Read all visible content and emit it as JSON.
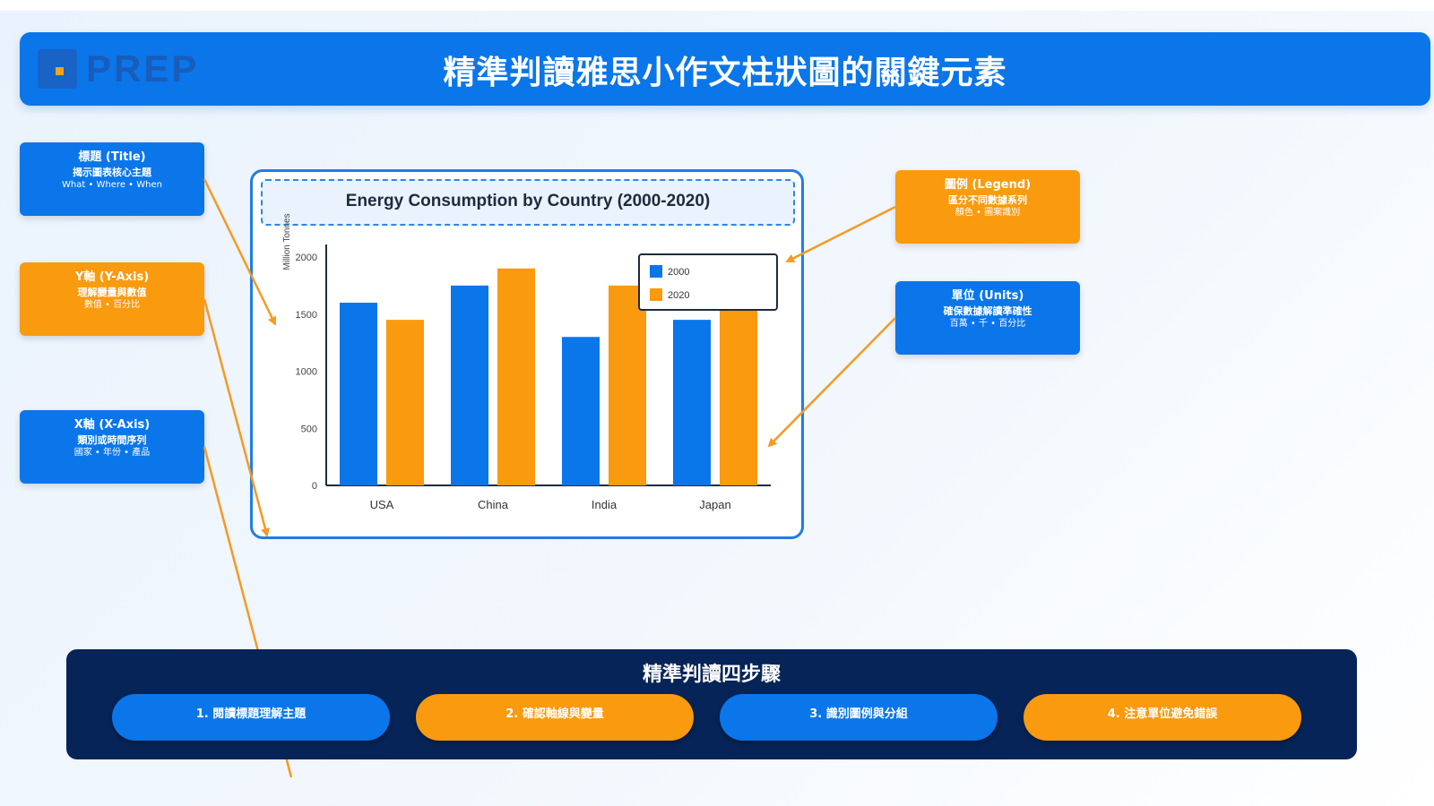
{
  "header": {
    "logo_text": "PREP",
    "title": "精準判讀雅思小作文柱狀圖的關鍵元素"
  },
  "callouts": {
    "title": {
      "heading": "標題 (Title)",
      "desc": "揭示圖表核心主題",
      "sub": "What • Where • When"
    },
    "y_axis": {
      "heading": "Y軸 (Y-Axis)",
      "desc": "理解變量與數值",
      "sub": "數值 • 百分比"
    },
    "x_axis": {
      "heading": "X軸 (X-Axis)",
      "desc": "類別或時間序列",
      "sub": "國家 • 年份 • 產品"
    },
    "legend": {
      "heading": "圖例 (Legend)",
      "desc": "區分不同數據系列",
      "sub": "顏色 • 圖案識別"
    },
    "units": {
      "heading": "單位 (Units)",
      "desc": "確保數據解讀準確性",
      "sub": "百萬 • 千 • 百分比"
    }
  },
  "chart_data": {
    "type": "bar",
    "title": "Energy Consumption by Country (2000-2020)",
    "ylabel": "Million Tonnes",
    "xlabel": "",
    "categories": [
      "USA",
      "China",
      "India",
      "Japan"
    ],
    "series": [
      {
        "name": "2000",
        "values": [
          1600,
          1750,
          1300,
          1450
        ],
        "color": "#0a76ea"
      },
      {
        "name": "2020",
        "values": [
          1450,
          1900,
          1750,
          1550
        ],
        "color": "#fa9a0e"
      }
    ],
    "yticks": [
      0,
      500,
      1000,
      1500,
      2000
    ],
    "ylim": [
      0,
      2000
    ],
    "legend_position": "top-right",
    "grid": false
  },
  "steps": {
    "title": "精準判讀四步驟",
    "items": [
      {
        "label": "1. 閱讀標題理解主題"
      },
      {
        "label": "2. 確認軸線與變量"
      },
      {
        "label": "3. 識別圖例與分組"
      },
      {
        "label": "4. 注意單位避免錯誤"
      }
    ]
  },
  "colors": {
    "primary_blue": "#0a76ea",
    "accent_orange": "#fa9a0e",
    "navy": "#062457"
  }
}
